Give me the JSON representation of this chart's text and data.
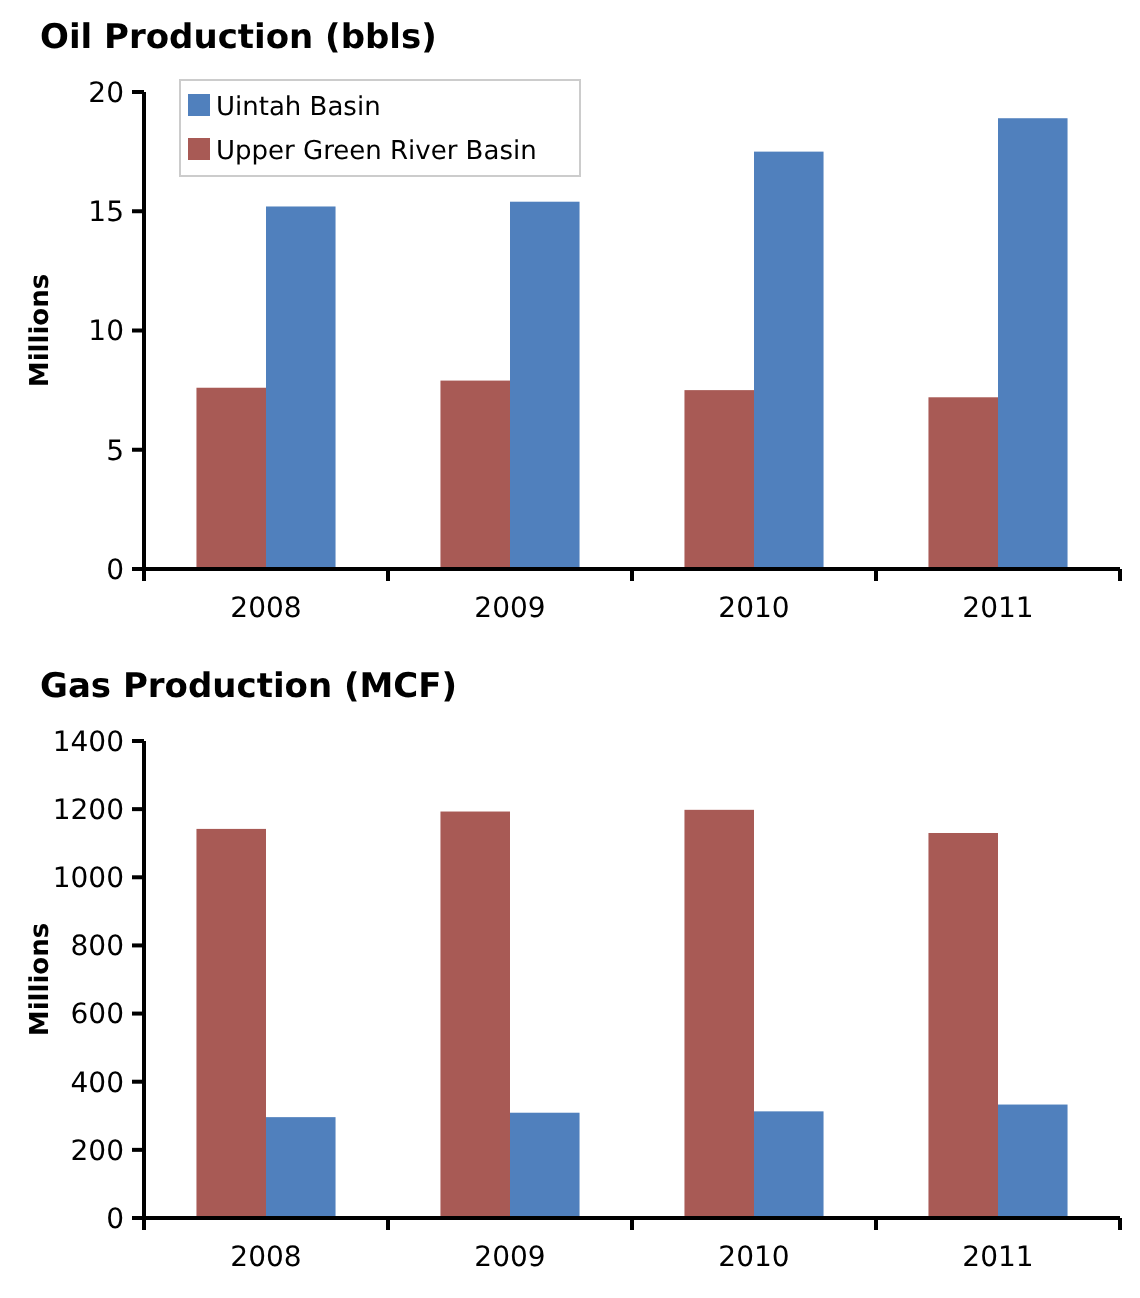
{
  "chart_data": [
    {
      "type": "bar",
      "title": "Oil Production (bbls)",
      "ylabel": "Millions",
      "categories": [
        "2008",
        "2009",
        "2010",
        "2011"
      ],
      "ylim": [
        0,
        20
      ],
      "yticks": [
        0,
        5,
        10,
        15,
        20
      ],
      "legend": "top left",
      "series": [
        {
          "name": "Upper Green River Basin",
          "color": "#a85a55",
          "values": [
            7.6,
            7.9,
            7.5,
            7.2
          ]
        },
        {
          "name": "Uintah Basin",
          "color": "#5080bd",
          "values": [
            15.2,
            15.4,
            17.5,
            18.9
          ]
        }
      ]
    },
    {
      "type": "bar",
      "title": "Gas Production (MCF)",
      "ylabel": "Millions",
      "categories": [
        "2008",
        "2009",
        "2010",
        "2011"
      ],
      "ylim": [
        0,
        1400
      ],
      "yticks": [
        0,
        200,
        400,
        600,
        800,
        1000,
        1200,
        1400
      ],
      "series": [
        {
          "color": "#a85a55",
          "values": [
            1142,
            1193,
            1198,
            1130
          ]
        },
        {
          "color": "#5080bd",
          "values": [
            296,
            309,
            313,
            333
          ]
        }
      ]
    }
  ]
}
